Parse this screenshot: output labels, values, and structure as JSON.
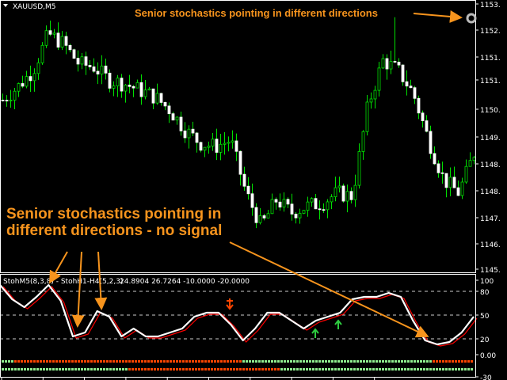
{
  "window": {
    "symbol_title": "XAUUSD,M5"
  },
  "indicator": {
    "label": "StohM5(8,3,8) - StohH1-H4(5,2,3)",
    "values_readout": "24.8904 26.7264 -10.0000 -20.0000"
  },
  "annotations": {
    "top": "Senior stochastics pointing in different directions",
    "main_line1": "Senior stochastics pointing in",
    "main_line2": "different directions - no signal"
  },
  "colors": {
    "bull": "#00e000",
    "bear": "#ffffff",
    "stoch_main": "#ffffff",
    "stoch_signal": "#ff0000",
    "annotation": "#f7941d",
    "dot_green": "#90ee90",
    "dot_red": "#ff4500",
    "arrow_up": "#2ecc40",
    "arrow_down": "#ff4500"
  },
  "chart_data": [
    {
      "type": "candlestick",
      "price_axis_labels": [
        "1153.",
        "1152.",
        "1151.",
        "1151.",
        "1150.",
        "1149.",
        "1148.",
        "1148.",
        "1147.",
        "1146.",
        "1145."
      ],
      "ylim": [
        1145.3,
        1153.3
      ],
      "approx_close_path": [
        1150.4,
        1150.8,
        1151.3,
        1152.4,
        1152.1,
        1151.5,
        1151.4,
        1151.0,
        1150.9,
        1150.7,
        1150.5,
        1150.1,
        1149.5,
        1149.1,
        1149.0,
        1149.2,
        1147.6,
        1146.6,
        1147.4,
        1147.0,
        1147.2,
        1147.3,
        1147.6,
        1147.5,
        1150.2,
        1151.6,
        1151.3,
        1150.6,
        1149.2,
        1148.0,
        1147.6,
        1148.8
      ],
      "approx_high_extremes": [
        1152.8,
        1152.9
      ]
    },
    {
      "type": "line",
      "label": "StohM5(8,3,8) - StohH1-H4(5,2,3)",
      "y_axis_labels": [
        "100",
        "80",
        "50",
        "20",
        "0.00",
        "-30"
      ],
      "ylim": [
        -30,
        100
      ],
      "levels": [
        80,
        50,
        20
      ],
      "main_path": [
        88,
        70,
        60,
        73,
        88,
        68,
        23,
        28,
        55,
        48,
        23,
        33,
        23,
        23,
        28,
        33,
        48,
        53,
        53,
        38,
        18,
        33,
        53,
        53,
        43,
        33,
        43,
        48,
        53,
        70,
        73,
        73,
        78,
        73,
        43,
        18,
        13,
        16,
        28,
        48
      ],
      "signal_dot_rows": [
        {
          "segments": [
            [
              "green",
              0,
              0.025
            ],
            [
              "red",
              0.025,
              0.51
            ],
            [
              "green",
              0.51,
              0.91
            ],
            [
              "red",
              0.91,
              1
            ]
          ]
        },
        {
          "segments": [
            [
              "green",
              0,
              0.267
            ],
            [
              "red",
              0.267,
              0.587
            ],
            [
              "green",
              0.587,
              1
            ]
          ]
        }
      ]
    }
  ]
}
